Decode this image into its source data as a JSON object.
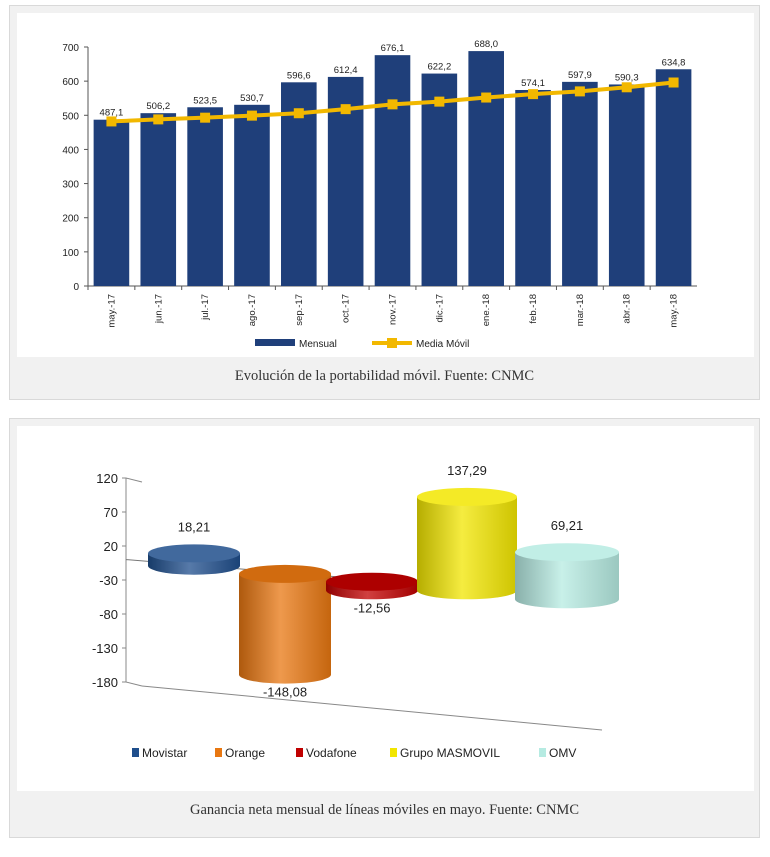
{
  "figures": [
    {
      "caption": "Evolución de la portabilidad móvil. Fuente: CNMC",
      "chart_data": {
        "type": "bar",
        "categories": [
          "may.-17",
          "jun.-17",
          "jul.-17",
          "ago.-17",
          "sep.-17",
          "oct.-17",
          "nov.-17",
          "dic.-17",
          "ene.-18",
          "feb.-18",
          "mar.-18",
          "abr.-18",
          "may.-18"
        ],
        "series": [
          {
            "name": "Mensual",
            "type": "bar",
            "color": "#1f3f7a",
            "values": [
              487.1,
              506.2,
              523.5,
              530.7,
              596.6,
              612.4,
              676.1,
              622.2,
              688.0,
              574.1,
              597.9,
              590.3,
              634.8
            ],
            "labels": [
              "487,1",
              "506,2",
              "523,5",
              "530,7",
              "596,6",
              "612,4",
              "676,1",
              "622,2",
              "688,0",
              "574,1",
              "597,9",
              "590,3",
              "634,8"
            ]
          },
          {
            "name": "Media Móvil",
            "type": "line",
            "color": "#f2b800",
            "values": [
              482,
              488,
              493,
              499,
              506,
              518,
              532,
              540,
              552,
              562,
              570,
              582,
              596
            ]
          }
        ],
        "ylim": [
          0,
          700
        ],
        "yticks": [
          "0",
          "100",
          "200",
          "300",
          "400",
          "500",
          "600",
          "700"
        ],
        "legend_position": "bottom",
        "grid": false
      }
    },
    {
      "caption": "Ganancia neta mensual de líneas móviles en mayo. Fuente: CNMC",
      "chart_data": {
        "type": "bar",
        "style": "3d-cylinder",
        "categories": [
          "Movistar",
          "Orange",
          "Vodafone",
          "Grupo MASMOVIL",
          "OMV"
        ],
        "values": [
          18.21,
          -148.08,
          -12.56,
          137.29,
          69.21
        ],
        "labels": [
          "18,21",
          "-148,08",
          "-12,56",
          "137,29",
          "69,21"
        ],
        "colors": [
          "#1f4e8c",
          "#e87711",
          "#c00000",
          "#f2e600",
          "#b6ebe2"
        ],
        "ylim": [
          -180,
          120
        ],
        "yticks": [
          "120",
          "70",
          "20",
          "-30",
          "-80",
          "-130",
          "-180"
        ],
        "legend_position": "bottom",
        "grid": false
      }
    }
  ]
}
